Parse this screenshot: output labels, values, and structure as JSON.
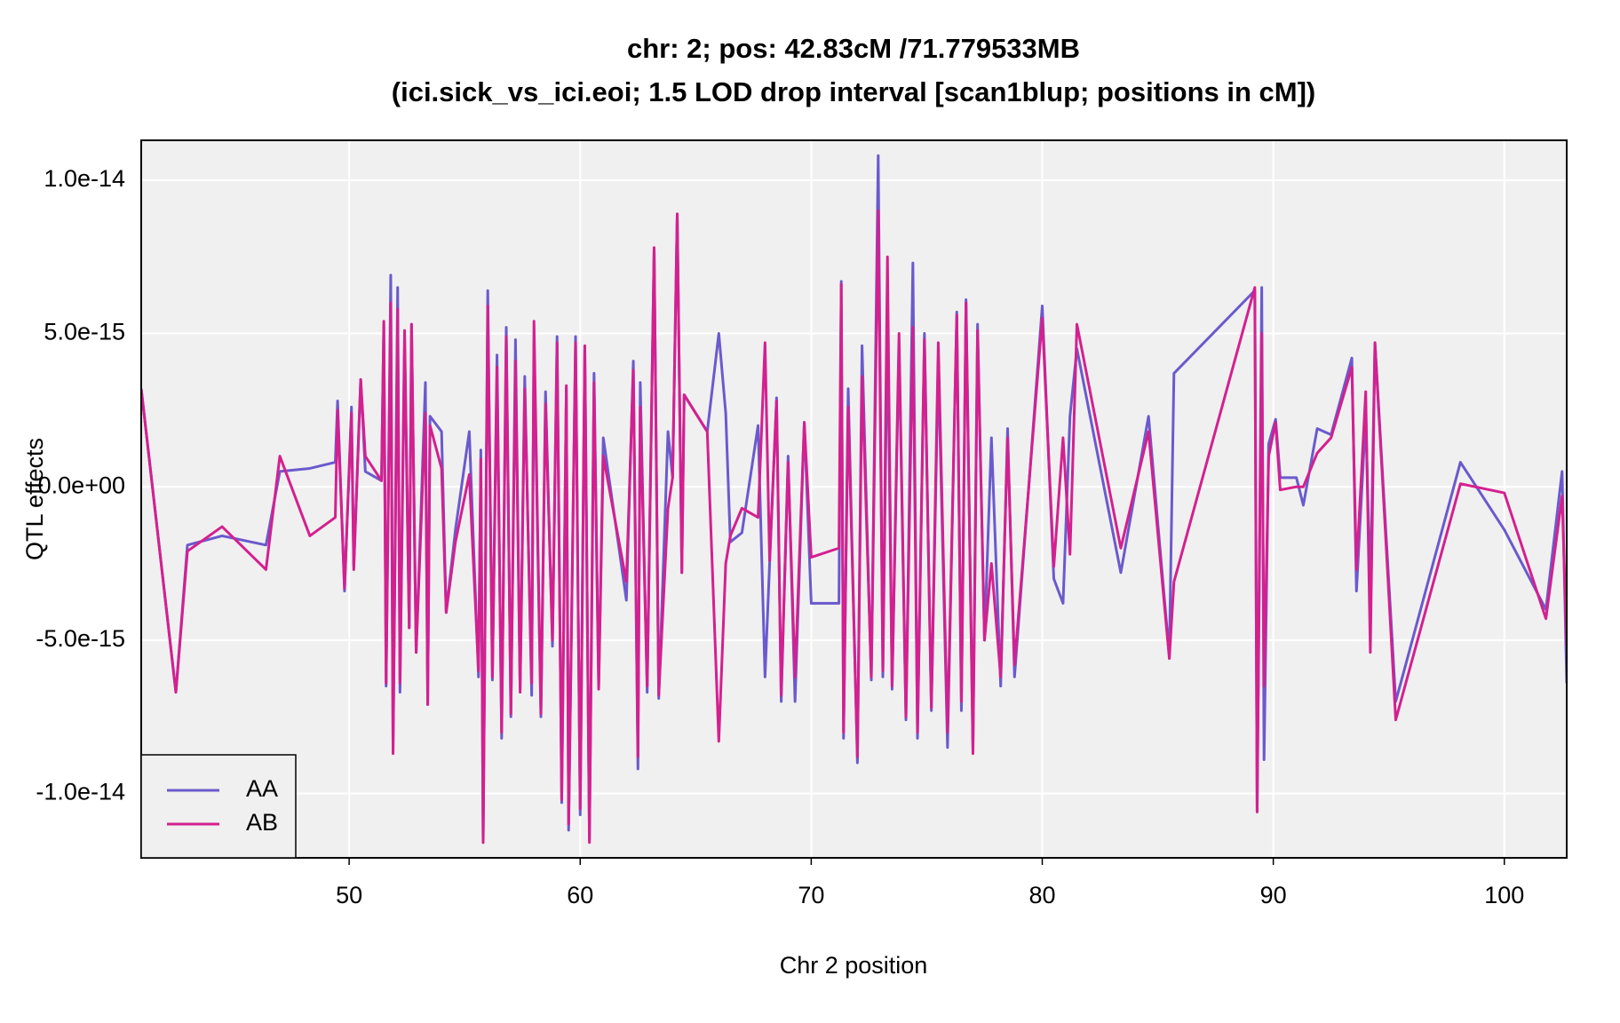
{
  "chart_data": {
    "type": "line",
    "title": "chr: 2; pos: 42.83cM /71.779533MB",
    "subtitle": "(ici.sick_vs_ici.eoi; 1.5 LOD drop interval [scan1blup; positions in cM])",
    "x_label": "Chr 2 position",
    "y_label": "QTL effects",
    "xlim": [
      41.0,
      102.7
    ],
    "ylim": [
      -1.21e-14,
      1.13e-14
    ],
    "xticks": [
      50,
      60,
      70,
      80,
      90,
      100
    ],
    "yticks": [
      {
        "value": -1e-14,
        "label": "-1.0e-14"
      },
      {
        "value": -5e-15,
        "label": "-5.0e-15"
      },
      {
        "value": 0,
        "label": "0.0e+00"
      },
      {
        "value": 5e-15,
        "label": "5.0e-15"
      },
      {
        "value": 1e-14,
        "label": "1.0e-14"
      }
    ],
    "grid": true,
    "legend": "bottom-left",
    "x": [
      41.0,
      42.5,
      43.0,
      44.5,
      46.4,
      47.0,
      48.3,
      49.4,
      49.5,
      49.8,
      50.1,
      50.2,
      50.5,
      50.7,
      51.4,
      51.5,
      51.6,
      51.8,
      51.9,
      52.1,
      52.2,
      52.4,
      52.6,
      52.7,
      52.9,
      53.3,
      53.4,
      53.5,
      54.0,
      54.2,
      54.6,
      55.2,
      55.6,
      55.7,
      55.8,
      56.0,
      56.2,
      56.4,
      56.6,
      56.8,
      57.0,
      57.2,
      57.4,
      57.6,
      57.9,
      58.0,
      58.3,
      58.5,
      58.8,
      59.0,
      59.2,
      59.4,
      59.5,
      59.8,
      60.0,
      60.2,
      60.4,
      60.6,
      60.8,
      61.0,
      62.0,
      62.3,
      62.5,
      62.6,
      62.9,
      63.2,
      63.4,
      63.8,
      64.0,
      64.2,
      64.4,
      64.5,
      65.5,
      66.0,
      66.3,
      66.5,
      67.0,
      67.7,
      68.0,
      68.2,
      68.5,
      68.7,
      69.0,
      69.3,
      69.7,
      70.0,
      71.2,
      71.3,
      71.4,
      71.6,
      72.0,
      72.2,
      72.6,
      72.9,
      73.1,
      73.3,
      73.5,
      73.8,
      74.1,
      74.4,
      74.6,
      74.9,
      75.2,
      75.5,
      75.9,
      76.3,
      76.5,
      76.7,
      77.0,
      77.2,
      77.5,
      77.8,
      78.2,
      78.5,
      78.8,
      80.0,
      80.5,
      80.9,
      81.2,
      81.5,
      83.4,
      84.6,
      85.5,
      85.7,
      89.2,
      89.3,
      89.5,
      89.6,
      89.8,
      90.1,
      90.3,
      91.0,
      91.3,
      91.9,
      92.5,
      93.4,
      93.6,
      94.0,
      94.2,
      94.4,
      95.3,
      98.1,
      100.0,
      101.8,
      102.5,
      102.7
    ],
    "series": [
      {
        "name": "AA",
        "color": "#6A5ACD",
        "values": [
          3.2e-15,
          -6.7e-15,
          -1.9e-15,
          -1.6e-15,
          -1.9e-15,
          5e-16,
          6e-16,
          8e-16,
          2.8e-15,
          -3.4e-15,
          2.6e-15,
          -2.6e-15,
          3.5e-15,
          5e-16,
          2e-16,
          5.3e-15,
          -6.5e-15,
          6.9e-15,
          -8.5e-15,
          6.5e-15,
          -6.7e-15,
          4.7e-15,
          -4.6e-15,
          5.3e-15,
          -5.4e-15,
          3.4e-15,
          -7.1e-15,
          2.3e-15,
          1.8e-15,
          -4.1e-15,
          -1.4e-15,
          1.8e-15,
          -6.2e-15,
          1.2e-15,
          -1.16e-14,
          6.4e-15,
          -6.3e-15,
          4.3e-15,
          -8.2e-15,
          5.2e-15,
          -7.5e-15,
          4.8e-15,
          -6.6e-15,
          3.6e-15,
          -6.8e-15,
          4.7e-15,
          -7.5e-15,
          3.1e-15,
          -5.2e-15,
          4.9e-15,
          -1.03e-14,
          3.2e-15,
          -1.12e-14,
          4.9e-15,
          -1.07e-14,
          4.6e-15,
          -1.15e-14,
          3.7e-15,
          -6.5e-15,
          1.6e-15,
          -3.7e-15,
          4.1e-15,
          -9.2e-15,
          3.4e-15,
          -6.7e-15,
          7.8e-15,
          -6.9e-15,
          1.8e-15,
          3e-16,
          8.9e-15,
          -2.8e-15,
          3e-15,
          1.8e-15,
          5e-15,
          2.4e-15,
          -1.8e-15,
          -1.5e-15,
          2e-15,
          -6.2e-15,
          -2.5e-15,
          2.9e-15,
          -7e-15,
          1e-15,
          -7e-15,
          2.1e-15,
          -3.8e-15,
          -3.8e-15,
          6.7e-15,
          -8.2e-15,
          3.2e-15,
          -9e-15,
          4.6e-15,
          -6.3e-15,
          1.08e-14,
          -6.2e-15,
          5.5e-15,
          -6.6e-15,
          4.6e-15,
          -7.6e-15,
          7.3e-15,
          -8.2e-15,
          5e-15,
          -7.3e-15,
          4e-15,
          -8.5e-15,
          5.7e-15,
          -7.3e-15,
          6.1e-15,
          -8.5e-15,
          5.3e-15,
          -5e-15,
          1.6e-15,
          -6.5e-15,
          1.9e-15,
          -6.2e-15,
          5.9e-15,
          -3e-15,
          -3.8e-15,
          2.3e-15,
          4.5e-15,
          -2.8e-15,
          2.3e-15,
          -5.5e-15,
          3.7e-15,
          6.4e-15,
          -1.06e-14,
          6.5e-15,
          -8.9e-15,
          1.4e-15,
          2.2e-15,
          3e-16,
          3e-16,
          -6e-16,
          1.9e-15,
          1.7e-15,
          4.2e-15,
          -3.4e-15,
          2.3e-15,
          -3.4e-15,
          4.7e-15,
          -7e-15,
          8e-16,
          -1.4e-15,
          -4e-15,
          5e-16,
          -6.4e-15
        ]
      },
      {
        "name": "AB",
        "color": "#D4208F",
        "values": [
          3.2e-15,
          -6.7e-15,
          -2.1e-15,
          -1.3e-15,
          -2.7e-15,
          1e-15,
          -1.6e-15,
          -1e-15,
          2.5e-15,
          -3.3e-15,
          2.4e-15,
          -2.7e-15,
          3.5e-15,
          1e-15,
          2e-16,
          5.4e-15,
          -6.4e-15,
          6e-15,
          -8.7e-15,
          5.8e-15,
          -6.4e-15,
          5.1e-15,
          -4.6e-15,
          5.3e-15,
          -5.4e-15,
          2.4e-15,
          -7.1e-15,
          2e-15,
          6e-16,
          -4.1e-15,
          -1.8e-15,
          4e-16,
          -6e-15,
          9e-16,
          -1.16e-14,
          5.9e-15,
          -6.2e-15,
          3.9e-15,
          -8e-15,
          4.9e-15,
          -7.4e-15,
          4.1e-15,
          -6.7e-15,
          3.2e-15,
          -6.4e-15,
          5.4e-15,
          -7.4e-15,
          2.7e-15,
          -5e-15,
          4.7e-15,
          -1.02e-14,
          3.3e-15,
          -1.1e-14,
          4.7e-15,
          -1.05e-14,
          4.6e-15,
          -1.16e-14,
          3.4e-15,
          -6.6e-15,
          1e-15,
          -3.1e-15,
          3.8e-15,
          -8.8e-15,
          2.6e-15,
          -6.5e-15,
          7.8e-15,
          -6.8e-15,
          -7e-16,
          3e-16,
          8.9e-15,
          -2.8e-15,
          3e-15,
          1.8e-15,
          -8.3e-15,
          -2.5e-15,
          -1.6e-15,
          -7e-16,
          -1e-15,
          4.7e-15,
          -2.4e-15,
          2.8e-15,
          -6.8e-15,
          8e-16,
          -6.2e-15,
          2.1e-15,
          -2.3e-15,
          -2e-15,
          6.6e-15,
          -8e-15,
          2.6e-15,
          -8.8e-15,
          3.6e-15,
          -6.2e-15,
          9e-15,
          -6e-15,
          7.5e-15,
          -6.5e-15,
          5e-15,
          -7.5e-15,
          5.2e-15,
          -8e-15,
          4.8e-15,
          -7.2e-15,
          4.7e-15,
          -8e-15,
          5.6e-15,
          -7e-15,
          6e-15,
          -8.7e-15,
          5.1e-15,
          -5e-15,
          -2.5e-15,
          -6.2e-15,
          1.6e-15,
          -5.8e-15,
          5.5e-15,
          -2.6e-15,
          1.6e-15,
          -2.2e-15,
          5.3e-15,
          -2e-15,
          1.8e-15,
          -5.6e-15,
          -3.1e-15,
          6.5e-15,
          -1.06e-14,
          5e-15,
          -6.5e-15,
          1e-15,
          2.1e-15,
          -1e-16,
          0,
          0,
          1.1e-15,
          1.6e-15,
          3.9e-15,
          -2.7e-15,
          3.1e-15,
          -5.4e-15,
          4.7e-15,
          -7.6e-15,
          1e-16,
          -2e-16,
          -4.3e-15,
          -3e-16,
          -5.2e-15
        ]
      }
    ]
  }
}
